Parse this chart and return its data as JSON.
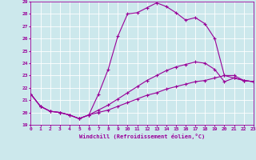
{
  "xlabel": "Windchill (Refroidissement éolien,°C)",
  "bg_color": "#cce8ec",
  "line_color": "#990099",
  "grid_color": "#ffffff",
  "xmin": 0,
  "xmax": 23,
  "ymin": 19,
  "ymax": 29,
  "line1_x": [
    0,
    1,
    2,
    3,
    4,
    5,
    6,
    7,
    8,
    9,
    10,
    11,
    12,
    13,
    14,
    15,
    16,
    17,
    18,
    19,
    20,
    21,
    22,
    23
  ],
  "line1_y": [
    21.5,
    20.5,
    20.1,
    20.0,
    19.8,
    19.5,
    19.8,
    21.5,
    23.5,
    26.2,
    28.0,
    28.1,
    28.5,
    28.9,
    28.6,
    28.1,
    27.5,
    27.7,
    27.2,
    26.0,
    23.0,
    22.8,
    22.6,
    22.5
  ],
  "line2_x": [
    0,
    1,
    2,
    3,
    4,
    5,
    6,
    7,
    8,
    9,
    10,
    11,
    12,
    13,
    14,
    15,
    16,
    17,
    18,
    19,
    20,
    21,
    22,
    23
  ],
  "line2_y": [
    21.5,
    20.5,
    20.1,
    20.0,
    19.8,
    19.5,
    19.8,
    20.2,
    20.6,
    21.1,
    21.6,
    22.1,
    22.6,
    23.0,
    23.4,
    23.7,
    23.9,
    24.1,
    24.0,
    23.5,
    22.5,
    22.8,
    22.6,
    22.5
  ],
  "line3_x": [
    0,
    1,
    2,
    3,
    4,
    5,
    6,
    7,
    8,
    9,
    10,
    11,
    12,
    13,
    14,
    15,
    16,
    17,
    18,
    19,
    20,
    21,
    22,
    23
  ],
  "line3_y": [
    21.5,
    20.5,
    20.1,
    20.0,
    19.8,
    19.5,
    19.8,
    20.0,
    20.2,
    20.5,
    20.8,
    21.1,
    21.4,
    21.6,
    21.9,
    22.1,
    22.3,
    22.5,
    22.6,
    22.8,
    23.0,
    23.0,
    22.6,
    22.5
  ]
}
